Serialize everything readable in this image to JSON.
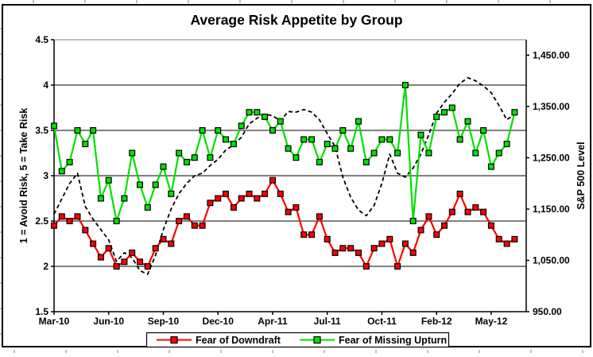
{
  "window": {
    "background": "#ffffff"
  },
  "chart": {
    "title": "Average Risk Appetite by Group",
    "left_axis": {
      "title": "1 = Avoid Risk, 5 = Take Risk",
      "tick_labels": [
        "4.5",
        "4",
        "3.5",
        "3",
        "2.5",
        "2",
        "1.5"
      ]
    },
    "right_axis": {
      "title": "S&P 500 Level",
      "tick_labels": [
        "1,450.00",
        "1,350.00",
        "1,250.00",
        "1,150.00",
        "1,050.00",
        "950.00"
      ]
    },
    "x_axis": {
      "tick_labels": [
        "Mar-10",
        "Jun-10",
        "Sep-10",
        "Dec-10",
        "Apr-11",
        "Jul-11",
        "Oct-11",
        "Feb-12",
        "May-12"
      ]
    },
    "legend": {
      "items": [
        {
          "label": "Fear of Downdraft",
          "color": "#ff0000"
        },
        {
          "label": "Fear of Missing Upturn",
          "color": "#00e100"
        }
      ]
    }
  },
  "chart_data": {
    "type": "line",
    "title": "Average Risk Appetite by Group",
    "x_tick_labels": [
      "Mar-10",
      "Jun-10",
      "Sep-10",
      "Dec-10",
      "Apr-11",
      "Jul-11",
      "Oct-11",
      "Feb-12",
      "May-12"
    ],
    "x_points": 60,
    "x_label_every_n_points": 7,
    "grid": "horizontal",
    "legend_position": "bottom",
    "y_left": {
      "label": "1 = Avoid Risk, 5 = Take Risk",
      "range": [
        1.5,
        4.5
      ],
      "tick_step": 0.5
    },
    "y_right": {
      "label": "S&P 500 Level",
      "range": [
        950,
        1480
      ],
      "ticks": [
        950,
        1050,
        1150,
        1250,
        1350,
        1450
      ]
    },
    "series": [
      {
        "name": "Fear of Downdraft",
        "axis": "left",
        "color": "#ff0000",
        "marker": "square",
        "line_style": "solid",
        "in_legend": true,
        "values": [
          2.45,
          2.55,
          2.5,
          2.55,
          2.4,
          2.25,
          2.1,
          2.2,
          2.0,
          2.05,
          2.15,
          2.05,
          2.0,
          2.2,
          2.3,
          2.25,
          2.5,
          2.55,
          2.45,
          2.45,
          2.7,
          2.75,
          2.8,
          2.65,
          2.75,
          2.8,
          2.75,
          2.8,
          2.95,
          2.8,
          2.6,
          2.65,
          2.35,
          2.35,
          2.55,
          2.3,
          2.15,
          2.2,
          2.2,
          2.15,
          2.0,
          2.2,
          2.25,
          2.3,
          2.0,
          2.25,
          2.15,
          2.4,
          2.55,
          2.35,
          2.45,
          2.6,
          2.8,
          2.6,
          2.65,
          2.6,
          2.45,
          2.3,
          2.25,
          2.3
        ]
      },
      {
        "name": "Fear of Missing Upturn",
        "axis": "left",
        "color": "#00e100",
        "marker": "square",
        "line_style": "solid",
        "in_legend": true,
        "values": [
          3.55,
          3.05,
          3.15,
          3.5,
          3.35,
          3.5,
          2.75,
          2.95,
          2.5,
          2.75,
          3.25,
          2.9,
          2.65,
          2.9,
          3.1,
          2.8,
          3.25,
          3.15,
          3.2,
          3.5,
          3.2,
          3.5,
          3.4,
          3.35,
          3.55,
          3.7,
          3.7,
          3.65,
          3.5,
          3.6,
          3.3,
          3.2,
          3.4,
          3.4,
          3.15,
          3.35,
          3.3,
          3.5,
          3.3,
          3.6,
          3.15,
          3.25,
          3.4,
          3.4,
          3.25,
          4.0,
          2.5,
          3.45,
          3.25,
          3.65,
          3.7,
          3.75,
          3.4,
          3.6,
          3.25,
          3.5,
          3.1,
          3.25,
          3.35,
          3.7
        ]
      },
      {
        "name": "S&P 500 Level",
        "axis": "right",
        "color": "#000000",
        "marker": "none",
        "line_style": "dashed",
        "in_legend": false,
        "values": [
          1140,
          1170,
          1200,
          1220,
          1155,
          1130,
          1110,
          1090,
          1048,
          1065,
          1055,
          1030,
          1023,
          1060,
          1110,
          1150,
          1180,
          1200,
          1215,
          1220,
          1235,
          1247,
          1265,
          1275,
          1290,
          1316,
          1327,
          1335,
          1332,
          1322,
          1340,
          1339,
          1344,
          1339,
          1324,
          1297,
          1272,
          1212,
          1173,
          1148,
          1137,
          1157,
          1200,
          1257,
          1220,
          1212,
          1230,
          1257,
          1295,
          1337,
          1358,
          1375,
          1395,
          1406,
          1400,
          1390,
          1377,
          1352,
          1324,
          1335
        ]
      }
    ]
  }
}
